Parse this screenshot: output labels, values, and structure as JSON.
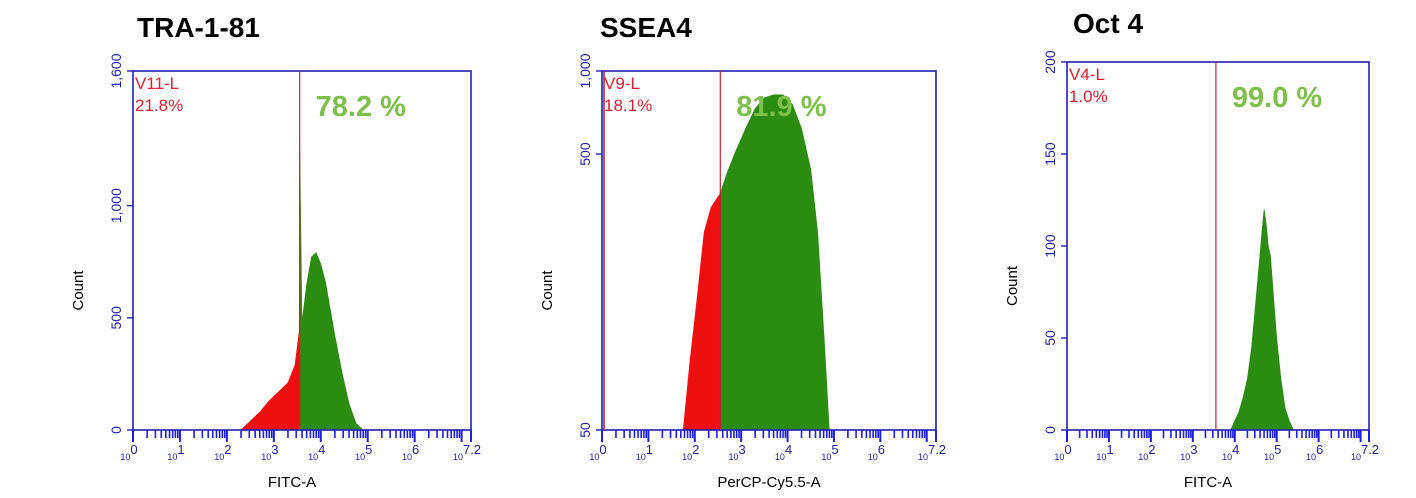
{
  "chart_data": [
    {
      "type": "area",
      "title": "TRA-1-81",
      "xlabel": "FITC-A",
      "ylabel": "Count",
      "xscale": "log",
      "xlim": [
        0,
        7.2
      ],
      "ylim": [
        0,
        1600
      ],
      "yticks": [
        "0",
        "500",
        "1,000",
        "1,600"
      ],
      "xticks": [
        "10^0",
        "10^1",
        "10^2",
        "10^3",
        "10^4",
        "10^5",
        "10^6",
        "10^7.2"
      ],
      "gate": {
        "name": "V11-L",
        "x": 3.55,
        "left_pct": "21.8%",
        "right_pct": "78.2 %"
      },
      "histogram": {
        "x": [
          2.3,
          2.5,
          2.7,
          2.9,
          3.1,
          3.3,
          3.45,
          3.54,
          3.55,
          3.6,
          3.7,
          3.8,
          3.9,
          4.0,
          4.1,
          4.2,
          4.3,
          4.45,
          4.6,
          4.75,
          4.9
        ],
        "counts": [
          0,
          40,
          80,
          130,
          170,
          210,
          290,
          440,
          1290,
          480,
          650,
          770,
          790,
          740,
          660,
          540,
          420,
          260,
          120,
          30,
          0
        ]
      }
    },
    {
      "type": "area",
      "title": "SSEA4",
      "xlabel": "PerCP-Cy5.5-A",
      "ylabel": "Count",
      "xscale": "log",
      "xlim": [
        0,
        7.2
      ],
      "ylim": [
        50,
        1000
      ],
      "yticks": [
        "50",
        "500",
        "1,000"
      ],
      "xticks": [
        "10^0",
        "10^1",
        "10^2",
        "10^3",
        "10^4",
        "10^5",
        "10^6",
        "10^7.2"
      ],
      "gate": {
        "name": "V9-L",
        "x": 2.55,
        "left_pct": "18.1%",
        "right_pct": "81.9 %"
      },
      "histogram": {
        "x": [
          1.75,
          1.9,
          2.05,
          2.2,
          2.35,
          2.5,
          2.55,
          2.7,
          2.9,
          3.1,
          3.3,
          3.5,
          3.7,
          3.9,
          4.1,
          4.3,
          4.5,
          4.65,
          4.8,
          4.9
        ],
        "counts": [
          50,
          90,
          150,
          260,
          320,
          350,
          360,
          430,
          520,
          620,
          730,
          800,
          820,
          820,
          760,
          620,
          440,
          260,
          100,
          50
        ]
      }
    },
    {
      "type": "area",
      "title": "Oct 4",
      "xlabel": "FITC-A",
      "ylabel": "Count",
      "xscale": "log",
      "xlim": [
        0,
        7.2
      ],
      "ylim": [
        0,
        200
      ],
      "yticks": [
        "0",
        "50",
        "100",
        "150",
        "200"
      ],
      "xticks": [
        "10^0",
        "10^1",
        "10^2",
        "10^3",
        "10^4",
        "10^5",
        "10^6",
        "10^7.2"
      ],
      "gate": {
        "name": "V4-L",
        "x": 3.55,
        "left_pct": "1.0%",
        "right_pct": "99.0 %"
      },
      "histogram": {
        "x": [
          3.9,
          4.0,
          4.1,
          4.2,
          4.3,
          4.4,
          4.5,
          4.6,
          4.65,
          4.7,
          4.75,
          4.8,
          4.85,
          4.9,
          5.0,
          5.1,
          5.2,
          5.3,
          5.4
        ],
        "counts": [
          0,
          5,
          10,
          18,
          28,
          45,
          70,
          95,
          108,
          120,
          112,
          100,
          95,
          80,
          50,
          28,
          12,
          5,
          0
        ]
      }
    }
  ],
  "colors": {
    "frame": "#2020b0",
    "axis_text": "#2020b0",
    "tick": "#1e1ee6",
    "gate": "#cc2030",
    "gate_text": "#e02030",
    "positive": "#2a8c10",
    "negative": "#ee1010",
    "percent_text": "#7ec04a"
  }
}
